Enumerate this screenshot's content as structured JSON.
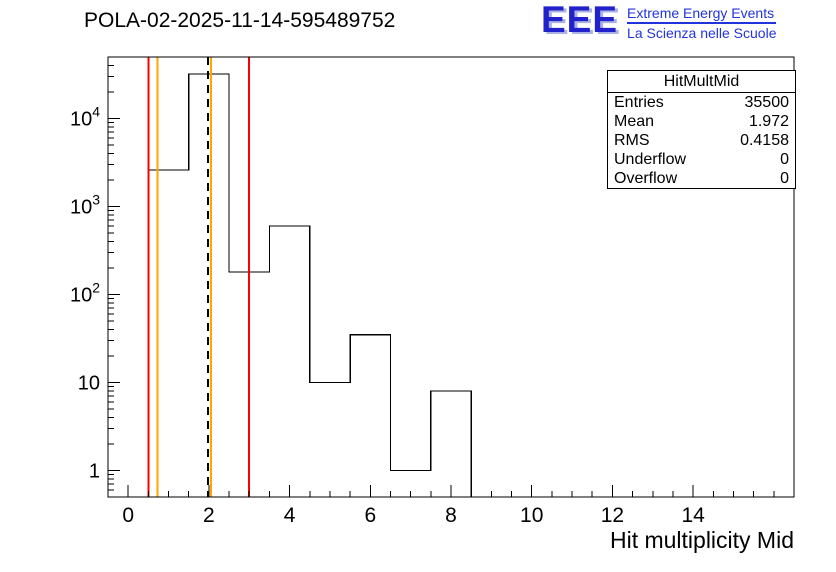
{
  "title": "POLA-02-2025-11-14-595489752",
  "logo": {
    "acronym": "EEE",
    "line1": "Extreme Energy Events",
    "line2": "La Scienza nelle Scuole",
    "color": "#2222cc"
  },
  "stats": {
    "title": "HitMultMid",
    "rows": [
      {
        "label": "Entries",
        "value": "35500"
      },
      {
        "label": "Mean",
        "value": "1.972"
      },
      {
        "label": "RMS",
        "value": "0.4158"
      },
      {
        "label": "Underflow",
        "value": "0"
      },
      {
        "label": "Overflow",
        "value": "0"
      }
    ]
  },
  "chart_data": {
    "type": "bar",
    "title": "POLA-02-2025-11-14-595489752",
    "xlabel": "Hit multiplicity Mid",
    "ylabel": "",
    "yscale": "log",
    "xlim": [
      -0.5,
      16.5
    ],
    "ylim": [
      0.5,
      50000
    ],
    "bin_width": 1,
    "bin_centers": [
      1,
      2,
      3,
      4,
      5,
      6,
      7,
      8
    ],
    "values": [
      2600,
      32000,
      180,
      600,
      10,
      35,
      1,
      8
    ],
    "xticks": [
      0,
      2,
      4,
      6,
      8,
      10,
      12,
      14
    ],
    "x_minor_step": 0.5,
    "ytick_decades": [
      0,
      1,
      2,
      3,
      4
    ],
    "grid": false,
    "legend": false,
    "line_color": "#000000",
    "vlines": [
      {
        "name": "red-cut-low-line",
        "x": 0.5,
        "color": "#ff0000",
        "style": "solid"
      },
      {
        "name": "yellow-cut-low-line",
        "x": 0.73,
        "color": "#ffa500",
        "style": "solid"
      },
      {
        "name": "mean-line",
        "x": 1.972,
        "color": "#000000",
        "style": "dashed"
      },
      {
        "name": "yellow-cut-high-line",
        "x": 2.05,
        "color": "#ffa500",
        "style": "solid"
      },
      {
        "name": "red-cut-high-line",
        "x": 3.0,
        "color": "#ff0000",
        "style": "solid"
      }
    ]
  }
}
